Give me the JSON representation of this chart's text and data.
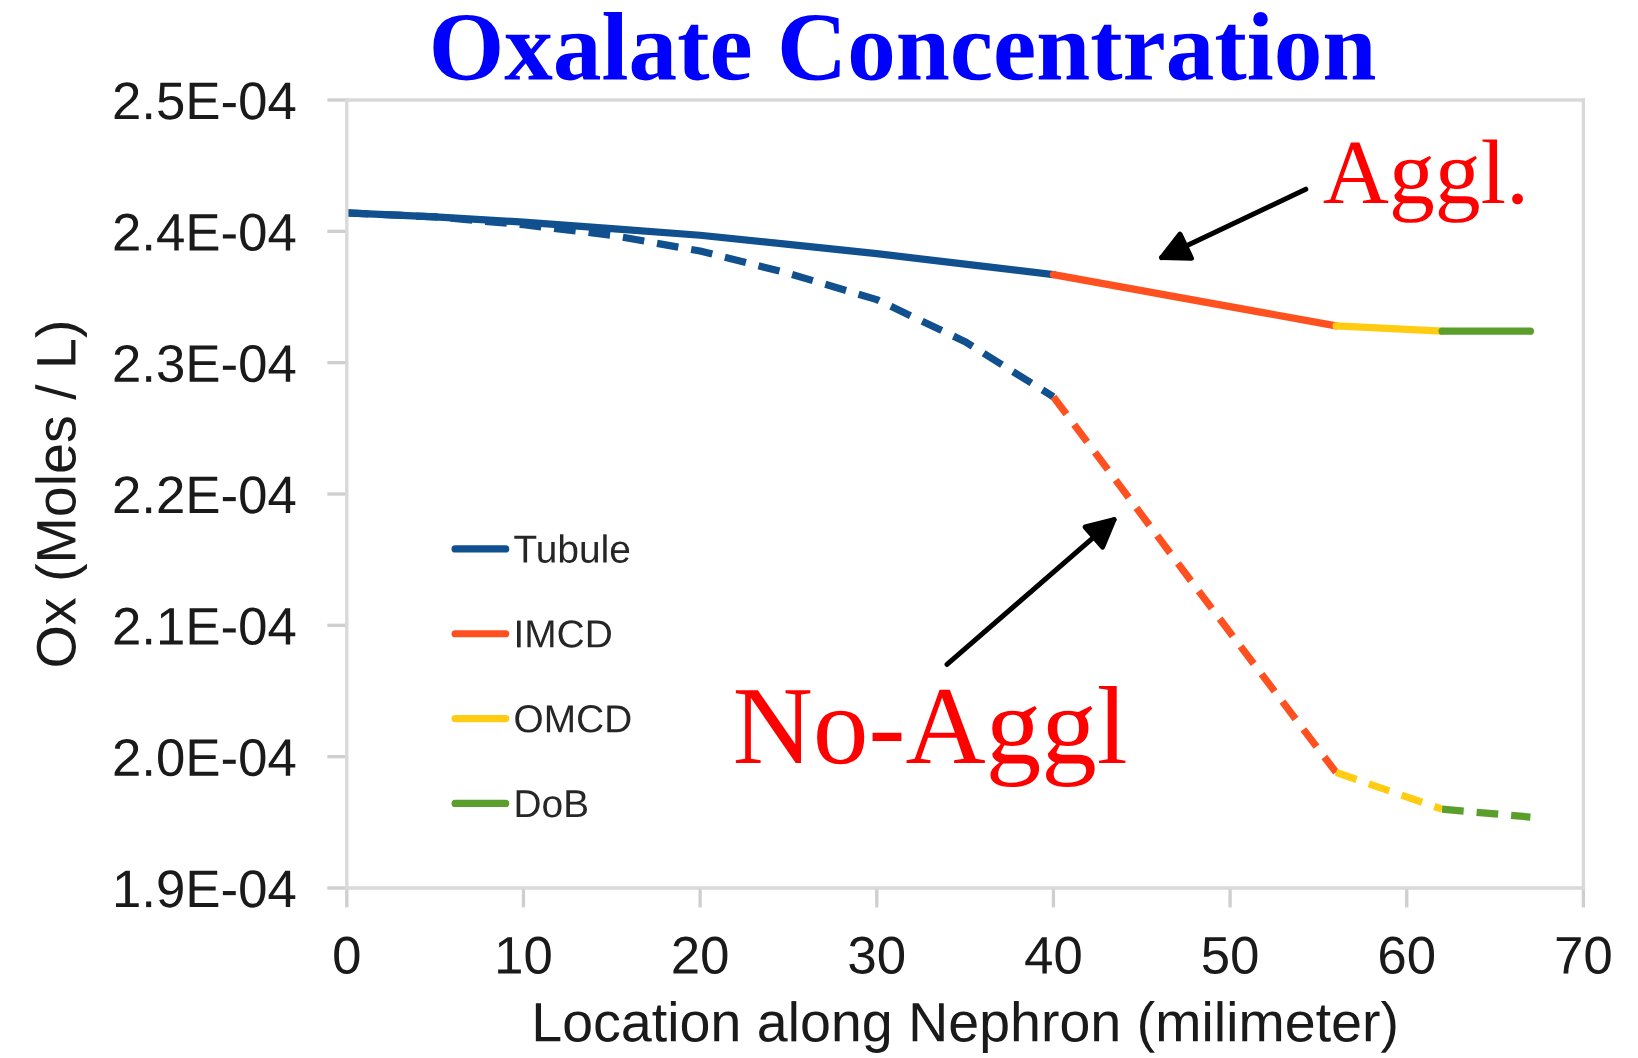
{
  "chart_data": {
    "type": "line",
    "title": "Oxalate Concentration",
    "xlabel": "Location along Nephron (milimeter)",
    "ylabel": "Ox (Moles / L)",
    "xlim": [
      0,
      70
    ],
    "xticks": [
      0,
      10,
      20,
      30,
      40,
      50,
      60,
      70
    ],
    "ylim": [
      0.00019,
      0.00025
    ],
    "yticks": [
      {
        "value": 0.00019,
        "label": "1.9E-04"
      },
      {
        "value": 0.0002,
        "label": "2.0E-04"
      },
      {
        "value": 0.00021,
        "label": "2.1E-04"
      },
      {
        "value": 0.00022,
        "label": "2.2E-04"
      },
      {
        "value": 0.00023,
        "label": "2.3E-04"
      },
      {
        "value": 0.00024,
        "label": "2.4E-04"
      },
      {
        "value": 0.00025,
        "label": "2.5E-04"
      }
    ],
    "legend": "lower left",
    "series": [
      {
        "name": "Tubule",
        "color": "#10508f",
        "line_style": "solid",
        "x": [
          0,
          5,
          10,
          15,
          20,
          25,
          30,
          35,
          40
        ],
        "values": [
          0.0002414,
          0.0002411,
          0.0002407,
          0.0002402,
          0.0002397,
          0.000239,
          0.0002383,
          0.0002375,
          0.0002367
        ]
      },
      {
        "name": "IMCD",
        "color": "#ff5020",
        "line_style": "solid",
        "x": [
          40,
          56
        ],
        "values": [
          0.0002367,
          0.0002328
        ]
      },
      {
        "name": "OMCD",
        "color": "#ffcc11",
        "line_style": "solid",
        "x": [
          56,
          62
        ],
        "values": [
          0.0002328,
          0.0002324
        ]
      },
      {
        "name": "DoB",
        "color": "#5a9e2c",
        "line_style": "solid",
        "x": [
          62,
          67
        ],
        "values": [
          0.0002324,
          0.0002324
        ]
      },
      {
        "color": "#10508f",
        "line_style": "dashed",
        "x": [
          0,
          5,
          10,
          15,
          20,
          25,
          30,
          35,
          40
        ],
        "values": [
          0.0002414,
          0.0002411,
          0.0002405,
          0.0002397,
          0.0002385,
          0.0002368,
          0.0002348,
          0.0002316,
          0.0002274
        ]
      },
      {
        "color": "#ff5020",
        "line_style": "dashed",
        "x": [
          40,
          44,
          48,
          52,
          56
        ],
        "values": [
          0.0002274,
          0.0002202,
          0.000213,
          0.0002059,
          0.0001988
        ]
      },
      {
        "color": "#ffcc11",
        "line_style": "dashed",
        "x": [
          56,
          62
        ],
        "values": [
          0.0001988,
          0.000196
        ]
      },
      {
        "color": "#5a9e2c",
        "line_style": "dashed",
        "x": [
          62,
          67
        ],
        "values": [
          0.000196,
          0.0001954
        ]
      }
    ],
    "annotations": [
      {
        "text": "Aggl.",
        "x": 43,
        "y": 0.000236
      },
      {
        "text": "No-Aggl",
        "x": 44.5,
        "y": 0.0002193
      }
    ]
  }
}
